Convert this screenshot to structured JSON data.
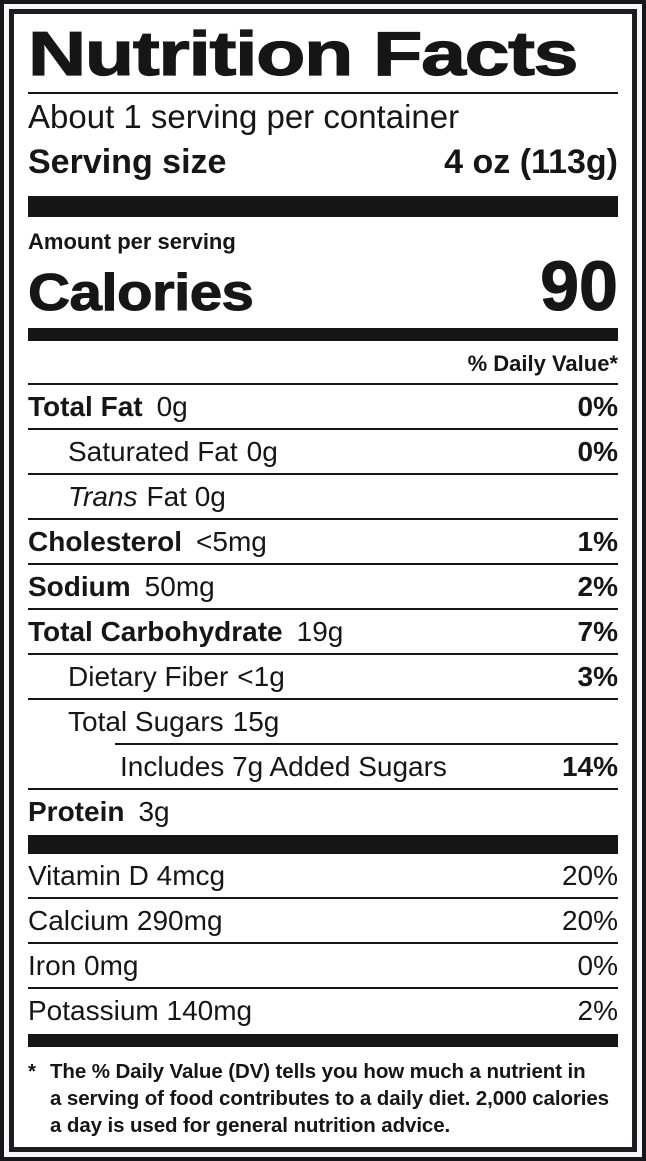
{
  "label": {
    "title": "Nutrition Facts",
    "servings_per_container": "About 1 serving per container",
    "serving_size_label": "Serving size",
    "serving_size_value": "4 oz (113g)",
    "amount_per_serving": "Amount per serving",
    "calories_label": "Calories",
    "calories_value": "90",
    "daily_value_header": "% Daily Value*",
    "nutrients": [
      {
        "name": "Total Fat",
        "amount": "0g",
        "dv": "0%",
        "indent": 0,
        "bold": true
      },
      {
        "name": "Saturated Fat",
        "amount": "0g",
        "dv": "0%",
        "indent": 1,
        "bold": false
      },
      {
        "name": "Trans",
        "amount": "Fat 0g",
        "dv": "",
        "indent": 1,
        "bold": false,
        "italic_name": true
      },
      {
        "name": "Cholesterol",
        "amount": "<5mg",
        "dv": "1%",
        "indent": 0,
        "bold": true
      },
      {
        "name": "Sodium",
        "amount": "50mg",
        "dv": "2%",
        "indent": 0,
        "bold": true
      },
      {
        "name": "Total Carbohydrate",
        "amount": "19g",
        "dv": "7%",
        "indent": 0,
        "bold": true
      },
      {
        "name": "Dietary Fiber",
        "amount": "<1g",
        "dv": "3%",
        "indent": 1,
        "bold": false
      },
      {
        "name": "Total Sugars",
        "amount": "15g",
        "dv": "",
        "indent": 1,
        "bold": false,
        "no_rule_below": true
      },
      {
        "name": "Includes 7g Added Sugars",
        "amount": "",
        "dv": "14%",
        "indent": 2,
        "bold": false,
        "inset_rule_above": true
      },
      {
        "name": "Protein",
        "amount": "3g",
        "dv": "",
        "indent": 0,
        "bold": true,
        "no_rule_below": true
      }
    ],
    "vitamins": [
      {
        "name": "Vitamin D 4mcg",
        "dv": "20%"
      },
      {
        "name": "Calcium 290mg",
        "dv": "20%"
      },
      {
        "name": "Iron 0mg",
        "dv": "0%"
      },
      {
        "name": "Potassium 140mg",
        "dv": "2%",
        "no_rule_below": true
      }
    ],
    "footnote": {
      "marker": "*",
      "lines": [
        "The % Daily Value (DV) tells you how much a nutrient in",
        "a serving of food contributes to a daily diet. 2,000 calories",
        "a day is used for general nutrition advice."
      ]
    },
    "colors": {
      "ink": "#161616",
      "paper": "#ffffff",
      "outer_background": "#17171b"
    }
  }
}
